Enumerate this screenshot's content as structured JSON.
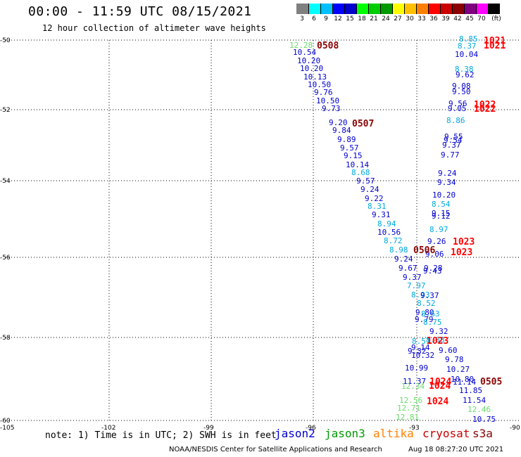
{
  "header": {
    "title": "00:00 - 11:59 UTC 08/15/2021",
    "subtitle": "12 hour collection of altimeter wave heights"
  },
  "scale": {
    "colors": [
      "#808080",
      "#00ffff",
      "#00bfff",
      "#0000ff",
      "#0000cd",
      "#00ff00",
      "#00cd00",
      "#009900",
      "#ffff00",
      "#ffc000",
      "#ff8000",
      "#ff0000",
      "#cd0000",
      "#8b0000",
      "#800080",
      "#ff00ff",
      "#000000"
    ],
    "labels": [
      "3",
      "6",
      "9",
      "12",
      "15",
      "18",
      "21",
      "24",
      "27",
      "30",
      "33",
      "36",
      "39",
      "42",
      "45",
      "70",
      "(ft)"
    ]
  },
  "axes": {
    "y_ticks": [
      "-50",
      "-52",
      "-54",
      "-56",
      "-58",
      "-60"
    ],
    "x_ticks": [
      "-105",
      "-102",
      "-99",
      "-96",
      "-93",
      "-90"
    ]
  },
  "note": "note: 1) Time is in UTC; 2) SWH is in feet",
  "legend": [
    {
      "label": "jason2",
      "color": "#0000cd"
    },
    {
      "label": "jason3",
      "color": "#009900"
    },
    {
      "label": "altika",
      "color": "#ff8000"
    },
    {
      "label": "cryosat",
      "color": "#cd0000"
    },
    {
      "label": "s3a",
      "color": "#8b0000"
    }
  ],
  "credit": "NOAA/NESDIS Center for Satellite Applications and Research",
  "timestamp": "Aug 18 08:27:20 UTC 2021",
  "readings": [
    {
      "t": "12.28",
      "c": "#66dd66"
    },
    {
      "t": "10.54",
      "c": "#0000cd"
    },
    {
      "t": "10.20",
      "c": "#0000cd"
    },
    {
      "t": "10.20",
      "c": "#0000cd"
    },
    {
      "t": "10.13",
      "c": "#0000cd"
    },
    {
      "t": "10.50",
      "c": "#0000cd"
    },
    {
      "t": "9.76",
      "c": "#0000cd"
    },
    {
      "t": "10.50",
      "c": "#0000cd"
    },
    {
      "t": "9.73",
      "c": "#0000cd"
    },
    {
      "t": "9.20",
      "c": "#0000cd"
    },
    {
      "t": "9.84",
      "c": "#0000cd"
    },
    {
      "t": "9.89",
      "c": "#0000cd"
    },
    {
      "t": "9.57",
      "c": "#0000cd"
    },
    {
      "t": "9.15",
      "c": "#0000cd"
    },
    {
      "t": "10.14",
      "c": "#0000cd"
    },
    {
      "t": "8.68",
      "c": "#00aadd"
    },
    {
      "t": "9.57",
      "c": "#0000cd"
    },
    {
      "t": "9.24",
      "c": "#0000cd"
    },
    {
      "t": "9.22",
      "c": "#0000cd"
    },
    {
      "t": "8.31",
      "c": "#00aadd"
    },
    {
      "t": "9.31",
      "c": "#0000cd"
    },
    {
      "t": "8.94",
      "c": "#00aadd"
    },
    {
      "t": "10.56",
      "c": "#0000cd"
    },
    {
      "t": "8.72",
      "c": "#00aadd"
    },
    {
      "t": "8.98",
      "c": "#00aadd"
    },
    {
      "t": "9.24",
      "c": "#0000cd"
    },
    {
      "t": "9.67",
      "c": "#0000cd"
    },
    {
      "t": "9.37",
      "c": "#0000cd"
    },
    {
      "t": "7.97",
      "c": "#00aadd"
    },
    {
      "t": "8.93",
      "c": "#00aadd"
    },
    {
      "t": "8.52",
      "c": "#00aadd"
    },
    {
      "t": "9.80",
      "c": "#0000cd"
    },
    {
      "t": "9.79",
      "c": "#0000cd"
    },
    {
      "t": "8.51",
      "c": "#00aadd"
    },
    {
      "t": "9.14",
      "c": "#0000cd"
    },
    {
      "t": "9.32",
      "c": "#0000cd"
    },
    {
      "t": "10.32",
      "c": "#0000cd"
    },
    {
      "t": "10.99",
      "c": "#0000cd"
    },
    {
      "t": "11.37",
      "c": "#0000cd"
    },
    {
      "t": "12.34",
      "c": "#66dd66"
    },
    {
      "t": "12.56",
      "c": "#66dd66"
    },
    {
      "t": "12.71",
      "c": "#66dd66"
    },
    {
      "t": "12.81",
      "c": "#66dd66"
    },
    {
      "t": "8.85",
      "c": "#00aadd"
    },
    {
      "t": "8.37",
      "c": "#00aadd"
    },
    {
      "t": "10.04",
      "c": "#0000cd"
    },
    {
      "t": "8.38",
      "c": "#00aadd"
    },
    {
      "t": "9.62",
      "c": "#0000cd"
    },
    {
      "t": "9.08",
      "c": "#0000cd"
    },
    {
      "t": "9.50",
      "c": "#0000cd"
    },
    {
      "t": "9.56",
      "c": "#0000cd"
    },
    {
      "t": "9.05",
      "c": "#0000cd"
    },
    {
      "t": "8.86",
      "c": "#00aadd"
    },
    {
      "t": "9.55",
      "c": "#0000cd"
    },
    {
      "t": "9.54",
      "c": "#0000cd"
    },
    {
      "t": "9.37",
      "c": "#0000cd"
    },
    {
      "t": "9.77",
      "c": "#0000cd"
    },
    {
      "t": "9.24",
      "c": "#0000cd"
    },
    {
      "t": "9.34",
      "c": "#0000cd"
    },
    {
      "t": "10.20",
      "c": "#0000cd"
    },
    {
      "t": "8.54",
      "c": "#00aadd"
    },
    {
      "t": "9.12",
      "c": "#0000cd"
    },
    {
      "t": "9.15",
      "c": "#0000cd"
    },
    {
      "t": "8.97",
      "c": "#00aadd"
    },
    {
      "t": "9.26",
      "c": "#0000cd"
    },
    {
      "t": "9.06",
      "c": "#0000cd"
    },
    {
      "t": "9.28",
      "c": "#0000cd"
    },
    {
      "t": "9.43",
      "c": "#0000cd"
    },
    {
      "t": "9.37",
      "c": "#0000cd"
    },
    {
      "t": "8.63",
      "c": "#00aadd"
    },
    {
      "t": "8.75",
      "c": "#00aadd"
    },
    {
      "t": "9.32",
      "c": "#0000cd"
    },
    {
      "t": "8.88",
      "c": "#00aadd"
    },
    {
      "t": "9.60",
      "c": "#0000cd"
    },
    {
      "t": "9.78",
      "c": "#0000cd"
    },
    {
      "t": "10.27",
      "c": "#0000cd"
    },
    {
      "t": "10.80",
      "c": "#0000cd"
    },
    {
      "t": "11.14",
      "c": "#0000cd"
    },
    {
      "t": "11.85",
      "c": "#0000cd"
    },
    {
      "t": "11.54",
      "c": "#0000cd"
    },
    {
      "t": "12.46",
      "c": "#66dd66"
    },
    {
      "t": "10.75",
      "c": "#0000cd"
    }
  ],
  "time_labels": [
    {
      "t": "0508",
      "c": "#8b0000"
    },
    {
      "t": "0507",
      "c": "#8b0000"
    },
    {
      "t": "0506",
      "c": "#8b0000"
    },
    {
      "t": "0505",
      "c": "#8b0000"
    },
    {
      "t": "1021",
      "c": "#ff0000"
    },
    {
      "t": "1021",
      "c": "#ff0000"
    },
    {
      "t": "1022",
      "c": "#ff0000"
    },
    {
      "t": "1022",
      "c": "#ff0000"
    },
    {
      "t": "1023",
      "c": "#ff0000"
    },
    {
      "t": "1023",
      "c": "#ff0000"
    },
    {
      "t": "1023",
      "c": "#ff0000"
    },
    {
      "t": "1024",
      "c": "#ff0000"
    },
    {
      "t": "1024",
      "c": "#ff0000"
    },
    {
      "t": "1024",
      "c": "#ff0000"
    }
  ]
}
